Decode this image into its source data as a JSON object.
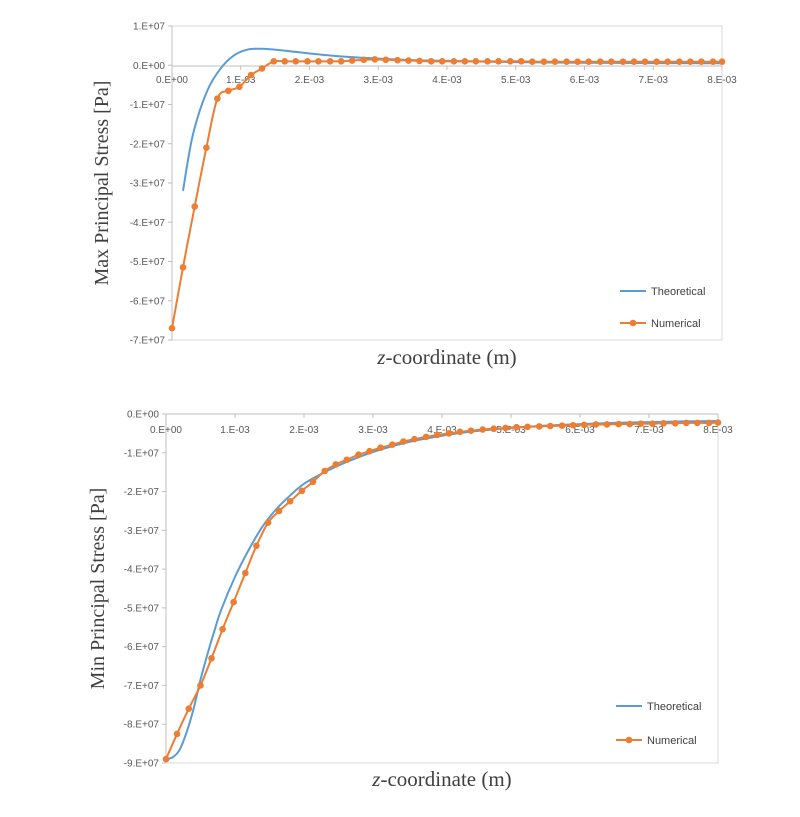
{
  "colors": {
    "theoretical": "#5b9bd5",
    "numerical": "#ed7d31",
    "axis": "#bfbfbf",
    "text": "#595959"
  },
  "chart_data": [
    {
      "type": "line",
      "ylabel": "Max Principal Stress [Pa]",
      "xlabel_italic": "z",
      "xlabel_rest": "-coordinate (m)",
      "xlim": [
        0,
        0.008
      ],
      "ylim": [
        -70000000,
        10000000
      ],
      "xticks": [
        "0.E+00",
        "1.E-03",
        "2.E-03",
        "3.E-03",
        "4.E-03",
        "5.E-03",
        "6.E-03",
        "7.E-03",
        "8.E-03"
      ],
      "yticks": [
        "1.E+07",
        "0.E+00",
        "-1.E+07",
        "-2.E+07",
        "-3.E+07",
        "-4.E+07",
        "-5.E+07",
        "-6.E+07",
        "-7.E+07"
      ],
      "legend_position": "bottom-right",
      "grid": false,
      "series": [
        {
          "name": "Theoretical",
          "marker": false,
          "x": [
            0.00016,
            0.0003,
            0.0005,
            0.0007,
            0.0009,
            0.0011,
            0.0013,
            0.0016,
            0.002,
            0.0025,
            0.003,
            0.0035,
            0.004,
            0.005,
            0.006,
            0.007,
            0.008
          ],
          "y": [
            -32000000,
            -18000000,
            -7000000,
            -1000000,
            2500000,
            4000000,
            4200000,
            3800000,
            3000000,
            2200000,
            1700000,
            1300000,
            1100000,
            800000,
            650000,
            550000,
            500000
          ]
        },
        {
          "name": "Numerical",
          "marker": true,
          "x": [
            0.0,
            0.00016,
            0.00033,
            0.0005,
            0.00066,
            0.00082,
            0.00098,
            0.00115,
            0.00131,
            0.00148,
            0.00164,
            0.0018,
            0.00197,
            0.00213,
            0.0023,
            0.00246,
            0.00262,
            0.00279,
            0.00295,
            0.00311,
            0.00328,
            0.00344,
            0.0036,
            0.00377,
            0.00393,
            0.0041,
            0.00426,
            0.00442,
            0.00459,
            0.00475,
            0.00492,
            0.00508,
            0.00524,
            0.00541,
            0.00557,
            0.00574,
            0.0059,
            0.00606,
            0.00623,
            0.00639,
            0.00656,
            0.00672,
            0.00688,
            0.00705,
            0.00721,
            0.00738,
            0.00754,
            0.0077,
            0.00787,
            0.008
          ],
          "y": [
            -67000000,
            -51500000,
            -36000000,
            -21000000,
            -8500000,
            -6500000,
            -5500000,
            -2500000,
            -800000,
            1000000,
            1000000,
            1000000,
            1000000,
            1000000,
            1000000,
            1000000,
            1200000,
            1400000,
            1500000,
            1400000,
            1300000,
            1200000,
            1100000,
            1000000,
            1000000,
            1000000,
            1000000,
            1000000,
            1000000,
            1000000,
            1000000,
            1000000,
            900000,
            900000,
            900000,
            900000,
            900000,
            900000,
            900000,
            900000,
            900000,
            900000,
            900000,
            900000,
            900000,
            900000,
            900000,
            900000,
            900000,
            900000
          ]
        }
      ]
    },
    {
      "type": "line",
      "ylabel": "Min Principal Stress [Pa]",
      "xlabel_italic": "z",
      "xlabel_rest": "-coordinate (m)",
      "xlim": [
        0,
        0.008
      ],
      "ylim": [
        -90000000,
        0
      ],
      "xticks": [
        "0.E+00",
        "1.E-03",
        "2.E-03",
        "3.E-03",
        "4.E-03",
        "5.E-03",
        "6.E-03",
        "7.E-03",
        "8.E-03"
      ],
      "yticks": [
        "0.E+00",
        "-1.E+07",
        "-2.E+07",
        "-3.E+07",
        "-4.E+07",
        "-5.E+07",
        "-6.E+07",
        "-7.E+07",
        "-8.E+07",
        "-9.E+07"
      ],
      "legend_position": "bottom-right",
      "grid": false,
      "series": [
        {
          "name": "Theoretical",
          "marker": false,
          "x": [
            0.0,
            0.0001,
            0.0002,
            0.0003,
            0.0004,
            0.0005,
            0.0006,
            0.0007,
            0.0008,
            0.001,
            0.0012,
            0.0014,
            0.0016,
            0.0018,
            0.002,
            0.0023,
            0.0026,
            0.003,
            0.0035,
            0.004,
            0.0045,
            0.005,
            0.0055,
            0.006,
            0.0065,
            0.007,
            0.0075,
            0.008
          ],
          "y": [
            -89000000,
            -88500000,
            -86500000,
            -82000000,
            -76000000,
            -68500000,
            -62000000,
            -56000000,
            -50500000,
            -42000000,
            -35000000,
            -29000000,
            -24500000,
            -21000000,
            -18000000,
            -15000000,
            -12500000,
            -9800000,
            -7300000,
            -5600000,
            -4400000,
            -3600000,
            -3000000,
            -2600000,
            -2300000,
            -2100000,
            -1900000,
            -1800000
          ]
        },
        {
          "name": "Numerical",
          "marker": true,
          "x": [
            0.0,
            0.00016,
            0.00033,
            0.0005,
            0.00066,
            0.00082,
            0.00098,
            0.00115,
            0.00131,
            0.00148,
            0.00164,
            0.0018,
            0.00197,
            0.00213,
            0.0023,
            0.00246,
            0.00262,
            0.00279,
            0.00295,
            0.00311,
            0.00328,
            0.00344,
            0.0036,
            0.00377,
            0.00393,
            0.0041,
            0.00426,
            0.00442,
            0.00459,
            0.00475,
            0.00492,
            0.00508,
            0.00524,
            0.00541,
            0.00557,
            0.00574,
            0.0059,
            0.00606,
            0.00623,
            0.00639,
            0.00656,
            0.00672,
            0.00688,
            0.00705,
            0.00721,
            0.00738,
            0.00754,
            0.0077,
            0.00787,
            0.008
          ],
          "y": [
            -89000000,
            -82500000,
            -76000000,
            -70000000,
            -63000000,
            -55500000,
            -48500000,
            -41000000,
            -34000000,
            -28000000,
            -25000000,
            -22500000,
            -19800000,
            -17500000,
            -14700000,
            -13000000,
            -11800000,
            -10500000,
            -9600000,
            -8700000,
            -7900000,
            -7100000,
            -6500000,
            -5900000,
            -5400000,
            -5000000,
            -4600000,
            -4300000,
            -4000000,
            -3800000,
            -3600000,
            -3400000,
            -3300000,
            -3200000,
            -3100000,
            -3000000,
            -2900000,
            -2800000,
            -2700000,
            -2700000,
            -2600000,
            -2600000,
            -2500000,
            -2500000,
            -2400000,
            -2400000,
            -2300000,
            -2300000,
            -2300000,
            -2200000
          ]
        }
      ]
    }
  ]
}
